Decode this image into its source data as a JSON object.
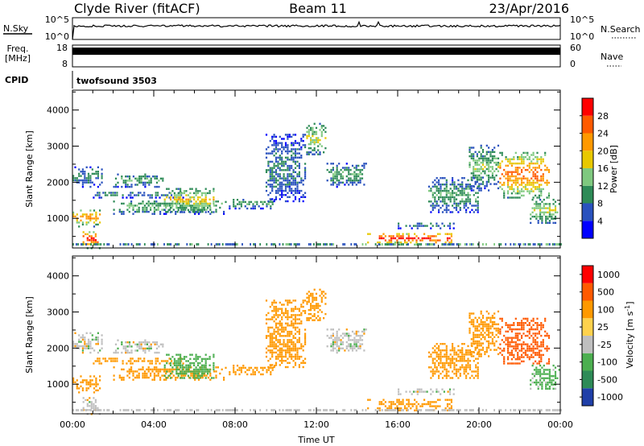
{
  "header": {
    "station": "Clyde River (fitACF)",
    "beam": "Beam 11",
    "date": "23/Apr/2016"
  },
  "strips": {
    "nsky": {
      "label": "N.Sky",
      "right_label": "N.Search",
      "tick_top": "10^5",
      "tick_bottom": "10^0",
      "right_tick_top": "10^5",
      "right_tick_bottom": "10^0",
      "level": 0.62
    },
    "freq": {
      "label_line1": "Freq.",
      "label_line2": "[MHz]",
      "tick_top": "18",
      "tick_bottom": "8",
      "right_label": "Nave",
      "right_tick_top": "60",
      "right_tick_bottom": "0",
      "level": 0.72
    },
    "cpid": {
      "label": "CPID",
      "value": "twofsound 3503"
    }
  },
  "axes": {
    "ylabel": "Slant Range [km]",
    "xlabel": "Time UT",
    "yticks": [
      "1000",
      "2000",
      "3000",
      "4000"
    ],
    "yticks_values": [
      1000,
      2000,
      3000,
      4000
    ],
    "ylim": [
      180,
      4550
    ],
    "xticks": [
      "00:00",
      "04:00",
      "08:00",
      "12:00",
      "16:00",
      "20:00",
      "00:00"
    ],
    "xticks_hours": [
      0,
      4,
      8,
      12,
      16,
      20,
      24
    ],
    "xlim_hours": [
      0,
      24
    ]
  },
  "chart_data": [
    {
      "type": "heatmap",
      "panel": "power",
      "colorbar": {
        "label": "Power [dB]",
        "ticks": [
          "4",
          "8",
          "12",
          "16",
          "20",
          "24",
          "28"
        ],
        "ticks_values": [
          4,
          8,
          12,
          16,
          20,
          24,
          28
        ],
        "range": [
          0,
          32
        ],
        "colors": [
          "#0000ff",
          "#2a52be",
          "#2e8b57",
          "#7fc97f",
          "#e8c800",
          "#ff9900",
          "#ff5a00",
          "#ff0000"
        ]
      },
      "regions": [
        {
          "t": [
            0.0,
            1.5
          ],
          "r": [
            1900,
            2500
          ],
          "level": 8
        },
        {
          "t": [
            0.0,
            1.4
          ],
          "r": [
            800,
            1300
          ],
          "level": 20
        },
        {
          "t": [
            0.5,
            1.4
          ],
          "r": [
            200,
            700
          ],
          "level": 26
        },
        {
          "t": [
            1.0,
            5.5
          ],
          "r": [
            1600,
            1800
          ],
          "level": 8
        },
        {
          "t": [
            2.0,
            4.5
          ],
          "r": [
            1900,
            2300
          ],
          "level": 10
        },
        {
          "t": [
            2.0,
            7.5
          ],
          "r": [
            1150,
            1550
          ],
          "level": 12
        },
        {
          "t": [
            4.5,
            7.0
          ],
          "r": [
            1200,
            1900
          ],
          "level": 16
        },
        {
          "t": [
            7.5,
            10.0
          ],
          "r": [
            1300,
            1600
          ],
          "level": 10
        },
        {
          "t": [
            9.5,
            11.5
          ],
          "r": [
            1500,
            3400
          ],
          "level": 8
        },
        {
          "t": [
            11.5,
            12.5
          ],
          "r": [
            2800,
            3700
          ],
          "level": 14
        },
        {
          "t": [
            12.5,
            14.5
          ],
          "r": [
            1900,
            2600
          ],
          "level": 10
        },
        {
          "t": [
            14.5,
            18.7
          ],
          "r": [
            300,
            650
          ],
          "level": 26
        },
        {
          "t": [
            16.0,
            19.0
          ],
          "r": [
            750,
            950
          ],
          "level": 8
        },
        {
          "t": [
            17.5,
            20.0
          ],
          "r": [
            1200,
            2200
          ],
          "level": 10
        },
        {
          "t": [
            19.5,
            21.0
          ],
          "r": [
            1800,
            3100
          ],
          "level": 12
        },
        {
          "t": [
            21.0,
            23.5
          ],
          "r": [
            1600,
            2900
          ],
          "level": 22
        },
        {
          "t": [
            22.5,
            24.0
          ],
          "r": [
            900,
            1600
          ],
          "level": 14
        }
      ]
    },
    {
      "type": "heatmap",
      "panel": "velocity",
      "colorbar": {
        "label": "Velocity [m s-1]",
        "ticks": [
          "1000",
          "500",
          "100",
          "25",
          "-25",
          "-100",
          "-500",
          "-1000"
        ],
        "colors": [
          "#1f3fa8",
          "#2e8b57",
          "#4caf50",
          "#bfbfbf",
          "#ffd24d",
          "#ff9900",
          "#ff5a00",
          "#ff0000"
        ]
      },
      "regions": [
        {
          "t": [
            0.0,
            1.5
          ],
          "r": [
            1900,
            2500
          ],
          "velocity": 0
        },
        {
          "t": [
            0.0,
            1.4
          ],
          "r": [
            800,
            1300
          ],
          "velocity": -150
        },
        {
          "t": [
            0.5,
            1.4
          ],
          "r": [
            200,
            700
          ],
          "velocity": 0
        },
        {
          "t": [
            1.0,
            5.5
          ],
          "r": [
            1600,
            1800
          ],
          "velocity": -150
        },
        {
          "t": [
            2.0,
            4.5
          ],
          "r": [
            1900,
            2300
          ],
          "velocity": 0
        },
        {
          "t": [
            2.0,
            7.5
          ],
          "r": [
            1150,
            1550
          ],
          "velocity": -150
        },
        {
          "t": [
            4.5,
            7.0
          ],
          "r": [
            1200,
            1900
          ],
          "velocity": 150
        },
        {
          "t": [
            7.5,
            10.0
          ],
          "r": [
            1300,
            1600
          ],
          "velocity": -150
        },
        {
          "t": [
            9.5,
            11.5
          ],
          "r": [
            1500,
            3400
          ],
          "velocity": -150
        },
        {
          "t": [
            11.5,
            12.5
          ],
          "r": [
            2800,
            3700
          ],
          "velocity": -150
        },
        {
          "t": [
            12.5,
            14.5
          ],
          "r": [
            1900,
            2600
          ],
          "velocity": 0
        },
        {
          "t": [
            14.5,
            18.7
          ],
          "r": [
            300,
            650
          ],
          "velocity": -150
        },
        {
          "t": [
            16.0,
            19.0
          ],
          "r": [
            750,
            950
          ],
          "velocity": 0
        },
        {
          "t": [
            17.5,
            20.0
          ],
          "r": [
            1200,
            2200
          ],
          "velocity": -150
        },
        {
          "t": [
            19.5,
            21.0
          ],
          "r": [
            1800,
            3100
          ],
          "velocity": -200
        },
        {
          "t": [
            21.0,
            23.5
          ],
          "r": [
            1600,
            2900
          ],
          "velocity": -600
        },
        {
          "t": [
            22.5,
            24.0
          ],
          "r": [
            900,
            1600
          ],
          "velocity": 120
        }
      ]
    }
  ]
}
